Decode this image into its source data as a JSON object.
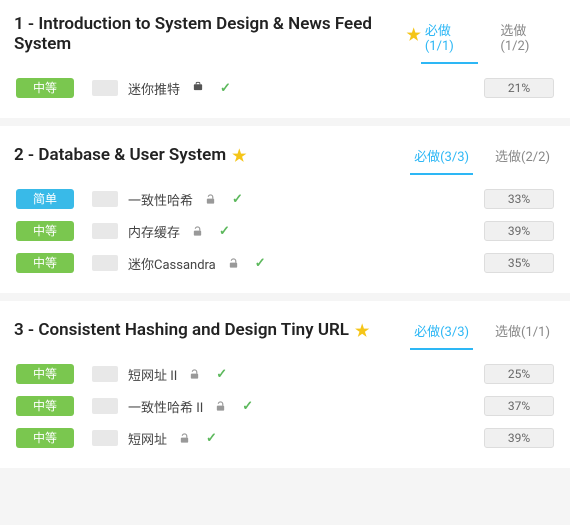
{
  "difficulty_labels": {
    "easy": "简单",
    "medium": "中等"
  },
  "colors": {
    "easy": "#39bae8",
    "medium": "#7ac74f",
    "tab_active": "#2db7f5",
    "star": "#f5c518",
    "check": "#5cb85c"
  },
  "sections": [
    {
      "title": "1 - Introduction to System Design & News Feed System",
      "tabs": {
        "required": "必做(1/1)",
        "optional": "选做(1/2)"
      },
      "rows": [
        {
          "difficulty": "medium",
          "title": "迷你推特",
          "lock": false,
          "briefcase": true,
          "check": true,
          "pct": "21%"
        }
      ]
    },
    {
      "title": "2 - Database & User System",
      "tabs": {
        "required": "必做(3/3)",
        "optional": "选做(2/2)"
      },
      "rows": [
        {
          "difficulty": "easy",
          "title": "一致性哈希",
          "lock": true,
          "briefcase": false,
          "check": true,
          "pct": "33%"
        },
        {
          "difficulty": "medium",
          "title": "内存缓存",
          "lock": true,
          "briefcase": false,
          "check": true,
          "pct": "39%"
        },
        {
          "difficulty": "medium",
          "title": "迷你Cassandra",
          "lock": true,
          "briefcase": false,
          "check": true,
          "pct": "35%"
        }
      ]
    },
    {
      "title": "3 - Consistent Hashing and Design Tiny URL",
      "tabs": {
        "required": "必做(3/3)",
        "optional": "选做(1/1)"
      },
      "rows": [
        {
          "difficulty": "medium",
          "title": "短网址 II",
          "lock": true,
          "briefcase": false,
          "check": true,
          "pct": "25%"
        },
        {
          "difficulty": "medium",
          "title": "一致性哈希 II",
          "lock": true,
          "briefcase": false,
          "check": true,
          "pct": "37%"
        },
        {
          "difficulty": "medium",
          "title": "短网址",
          "lock": true,
          "briefcase": false,
          "check": true,
          "pct": "39%"
        }
      ]
    }
  ]
}
